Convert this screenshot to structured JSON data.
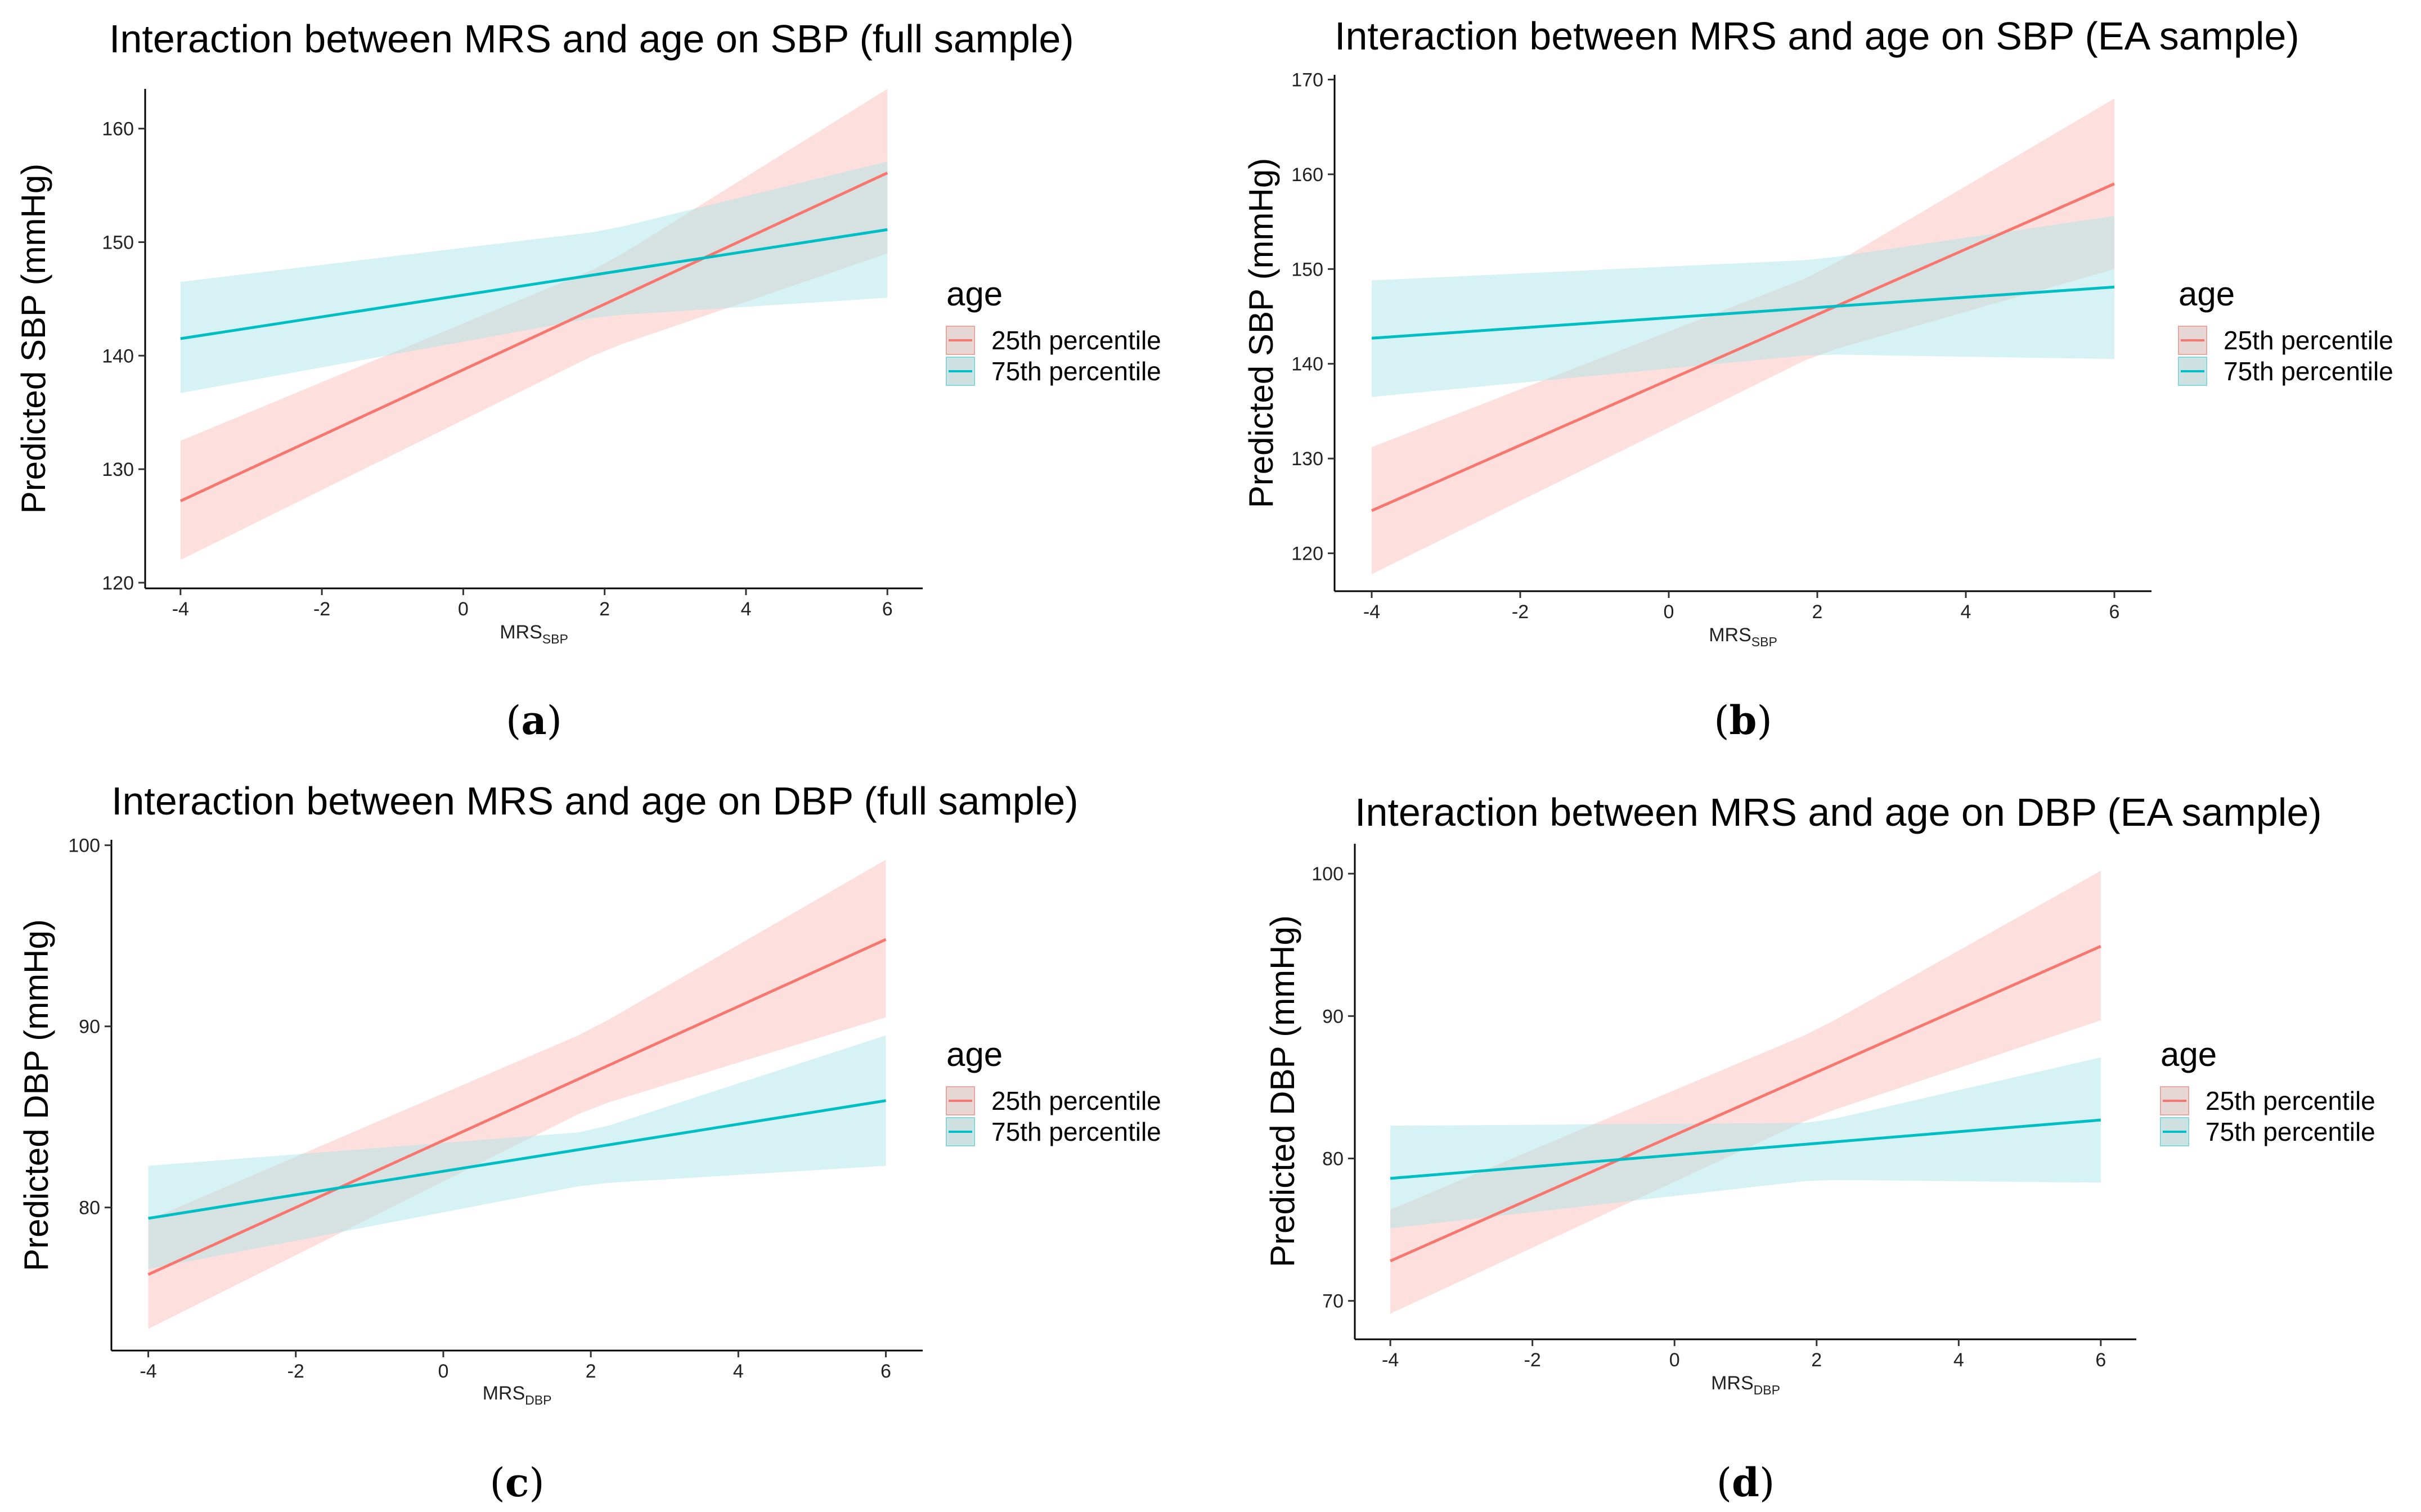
{
  "colors": {
    "young": "#f8766d",
    "old": "#00bfc4",
    "young_band": "#fbc6c2",
    "old_band": "#a6e3e6"
  },
  "chart_data": [
    {
      "type": "line",
      "id": "a",
      "title": "Interaction between MRS and age on SBP (full sample)",
      "ylabel": "Predicted SBP (mmHg)",
      "xlabel": "MRS",
      "xlabel_sub": "SBP",
      "caption": "a",
      "xlim": [
        -4.5,
        6.5
      ],
      "ylim": [
        119.5,
        163.5
      ],
      "xticks": [
        -4,
        -2,
        0,
        2,
        4,
        6
      ],
      "yticks": [
        120,
        130,
        140,
        150,
        160
      ],
      "legend": {
        "title": "age",
        "entries": [
          "25th percentile",
          "75th percentile"
        ],
        "position": "right"
      },
      "series": [
        {
          "name": "25th percentile",
          "line": [
            [
              -4,
              127.2
            ],
            [
              6,
              156.1
            ]
          ],
          "band_lower": [
            [
              -4,
              122.0
            ],
            [
              2,
              140.5
            ],
            [
              6,
              149.0
            ]
          ],
          "band_upper": [
            [
              -4,
              132.5
            ],
            [
              2,
              148.0
            ],
            [
              6,
              163.5
            ]
          ]
        },
        {
          "name": "75th percentile",
          "line": [
            [
              -4,
              141.5
            ],
            [
              6,
              151.1
            ]
          ],
          "band_lower": [
            [
              -4,
              136.7
            ],
            [
              2,
              143.5
            ],
            [
              6,
              145.1
            ]
          ],
          "band_upper": [
            [
              -4,
              146.5
            ],
            [
              2,
              151.0
            ],
            [
              6,
              157.1
            ]
          ]
        }
      ]
    },
    {
      "type": "line",
      "id": "b",
      "title": "Interaction between MRS and age on SBP (EA sample)",
      "ylabel": "Predicted SBP (mmHg)",
      "xlabel": "MRS",
      "xlabel_sub": "SBP",
      "caption": "b",
      "xlim": [
        -4.5,
        6.5
      ],
      "ylim": [
        116,
        170.5
      ],
      "xticks": [
        -4,
        -2,
        0,
        2,
        4,
        6
      ],
      "yticks": [
        120,
        130,
        140,
        150,
        160,
        170
      ],
      "legend": {
        "title": "age",
        "entries": [
          "25th percentile",
          "75th percentile"
        ],
        "position": "right"
      },
      "series": [
        {
          "name": "25th percentile",
          "line": [
            [
              -4,
              124.5
            ],
            [
              6,
              159.0
            ]
          ],
          "band_lower": [
            [
              -4,
              117.8
            ],
            [
              2,
              141.0
            ],
            [
              6,
              150.0
            ]
          ],
          "band_upper": [
            [
              -4,
              131.2
            ],
            [
              2,
              149.5
            ],
            [
              6,
              168.0
            ]
          ]
        },
        {
          "name": "75th percentile",
          "line": [
            [
              -4,
              142.7
            ],
            [
              6,
              148.1
            ]
          ],
          "band_lower": [
            [
              -4,
              136.5
            ],
            [
              2,
              141.0
            ],
            [
              6,
              140.5
            ]
          ],
          "band_upper": [
            [
              -4,
              148.8
            ],
            [
              2,
              151.0
            ],
            [
              6,
              155.6
            ]
          ]
        }
      ]
    },
    {
      "type": "line",
      "id": "c",
      "title": "Interaction between MRS and age on DBP (full sample)",
      "ylabel": "Predicted DBP (mmHg)",
      "xlabel": "MRS",
      "xlabel_sub": "DBP",
      "caption": "c",
      "xlim": [
        -4.5,
        6.5
      ],
      "ylim": [
        72.1,
        100.3
      ],
      "xticks": [
        -4,
        -2,
        0,
        2,
        4,
        6
      ],
      "yticks": [
        80,
        90,
        100
      ],
      "legend": {
        "title": "age",
        "entries": [
          "25th percentile",
          "75th percentile"
        ],
        "position": "right"
      },
      "series": [
        {
          "name": "25th percentile",
          "line": [
            [
              -4,
              76.3
            ],
            [
              6,
              94.8
            ]
          ],
          "band_lower": [
            [
              -4,
              73.3
            ],
            [
              2,
              85.5
            ],
            [
              6,
              90.5
            ]
          ],
          "band_upper": [
            [
              -4,
              79.3
            ],
            [
              2,
              89.8
            ],
            [
              6,
              99.2
            ]
          ]
        },
        {
          "name": "75th percentile",
          "line": [
            [
              -4,
              79.4
            ],
            [
              6,
              85.9
            ]
          ],
          "band_lower": [
            [
              -4,
              76.6
            ],
            [
              2,
              81.3
            ],
            [
              6,
              82.3
            ]
          ],
          "band_upper": [
            [
              -4,
              82.3
            ],
            [
              2,
              84.2
            ],
            [
              6,
              89.5
            ]
          ]
        }
      ]
    },
    {
      "type": "line",
      "id": "d",
      "title": "Interaction between MRS and age on DBP (EA sample)",
      "ylabel": "Predicted DBP (mmHg)",
      "xlabel": "MRS",
      "xlabel_sub": "DBP",
      "caption": "d",
      "xlim": [
        -4.5,
        6.5
      ],
      "ylim": [
        67.3,
        102.1
      ],
      "xticks": [
        -4,
        -2,
        0,
        2,
        4,
        6
      ],
      "yticks": [
        70,
        80,
        90,
        100
      ],
      "legend": {
        "title": "age",
        "entries": [
          "25th percentile",
          "75th percentile"
        ],
        "position": "right"
      },
      "series": [
        {
          "name": "25th percentile",
          "line": [
            [
              -4,
              72.8
            ],
            [
              6,
              94.9
            ]
          ],
          "band_lower": [
            [
              -4,
              69.1
            ],
            [
              2,
              83.0
            ],
            [
              6,
              89.7
            ]
          ],
          "band_upper": [
            [
              -4,
              76.4
            ],
            [
              2,
              89.0
            ],
            [
              6,
              100.2
            ]
          ]
        },
        {
          "name": "75th percentile",
          "line": [
            [
              -4,
              78.6
            ],
            [
              6,
              82.7
            ]
          ],
          "band_lower": [
            [
              -4,
              75.1
            ],
            [
              2,
              78.5
            ],
            [
              6,
              78.3
            ]
          ],
          "band_upper": [
            [
              -4,
              82.3
            ],
            [
              2,
              82.5
            ],
            [
              6,
              87.1
            ]
          ]
        }
      ]
    }
  ]
}
